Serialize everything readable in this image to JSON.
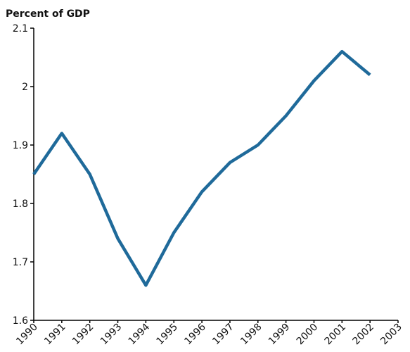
{
  "chart_data": {
    "type": "line",
    "y_label": "Percent of GDP",
    "x": [
      1990,
      1991,
      1992,
      1993,
      1994,
      1995,
      1996,
      1997,
      1998,
      1999,
      2000,
      2001,
      2002
    ],
    "series": [
      {
        "color": "#1f6a9a",
        "values": [
          1.85,
          1.92,
          1.85,
          1.74,
          1.66,
          1.75,
          1.82,
          1.87,
          1.9,
          1.95,
          2.01,
          2.06,
          2.02
        ]
      }
    ],
    "xlim": [
      1990,
      2003
    ],
    "xticks": [
      1990,
      1991,
      1992,
      1993,
      1994,
      1995,
      1996,
      1997,
      1998,
      1999,
      2000,
      2001,
      2002,
      2003
    ],
    "ylim": [
      1.6,
      2.1
    ],
    "yticks": [
      1.6,
      1.7,
      1.8,
      1.9,
      2,
      2.1
    ],
    "grid": false
  }
}
